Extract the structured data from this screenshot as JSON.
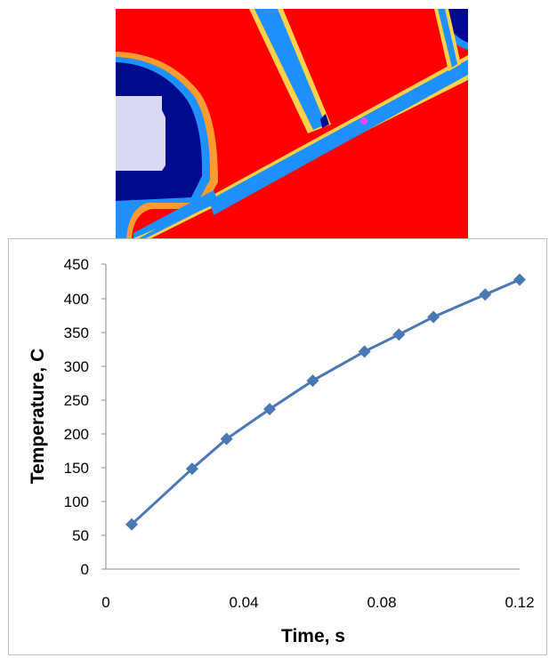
{
  "chart_data": {
    "type": "line",
    "xlabel": "Time, s",
    "ylabel": "Temperature, C",
    "xlim": [
      0,
      0.12
    ],
    "ylim": [
      0,
      450
    ],
    "x_ticks": [
      "0",
      "0.04",
      "0.08",
      "0.12"
    ],
    "y_ticks": [
      "0",
      "50",
      "100",
      "150",
      "200",
      "250",
      "300",
      "350",
      "400",
      "450"
    ],
    "grid": false,
    "legend": "none",
    "marker": "diamond",
    "series": [
      {
        "x": [
          0.0075,
          0.025,
          0.035,
          0.0475,
          0.06,
          0.075,
          0.085,
          0.095,
          0.11,
          0.12
        ],
        "y": [
          66,
          148,
          192,
          236,
          278,
          321,
          346,
          372,
          405,
          427
        ],
        "color": "#4a78b2"
      }
    ]
  },
  "simulation_image": {
    "colors": {
      "hot": "#ff0000",
      "cold": "#000a8c",
      "channel": "#1e90ff",
      "core": "#d8d8f0",
      "probe": "#ff44ff"
    }
  }
}
